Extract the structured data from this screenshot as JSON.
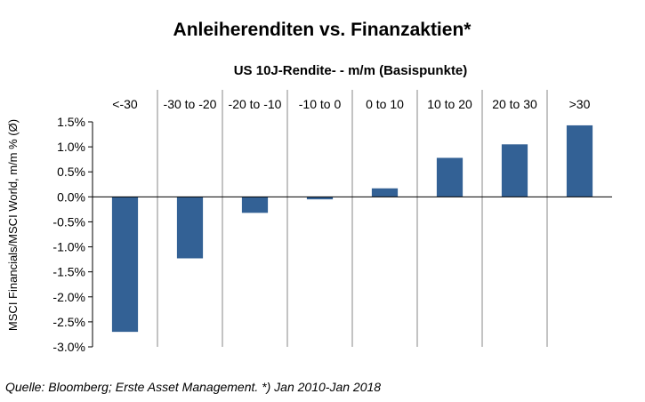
{
  "colors": {
    "bar": "#336195",
    "grid": "#878787",
    "axis": "#000000"
  },
  "chart_data": {
    "type": "bar",
    "title": "Anleiherenditen  vs. Finanzaktien*",
    "subtitle": "US 10J-Rendite- - m/m (Basispunkte)",
    "ylabel": "MSCI Financials/MSCI World, m/m % (Ø)",
    "categories": [
      "<-30",
      "-30 to -20",
      "-20 to -10",
      "-10 to 0",
      "0 to 10",
      "10 to 20",
      "20 to 30",
      ">30"
    ],
    "values": [
      -2.7,
      -1.23,
      -0.32,
      -0.05,
      0.17,
      0.78,
      1.05,
      1.43
    ],
    "ylim": [
      -3.0,
      1.5
    ],
    "yticks": [
      1.5,
      1.0,
      0.5,
      0.0,
      -0.5,
      -1.0,
      -1.5,
      -2.0,
      -2.5,
      -3.0
    ],
    "ytick_labels": [
      "1.5%",
      "1.0%",
      "0.5%",
      "0.0%",
      "-0.5%",
      "-1.0%",
      "-1.5%",
      "-2.0%",
      "-2.5%",
      "-3.0%"
    ],
    "category_axis_position": "top",
    "vertical_gridlines": true,
    "legend": "none",
    "source": "Quelle: Bloomberg; Erste Asset Management. *) Jan 2010-Jan 2018"
  }
}
